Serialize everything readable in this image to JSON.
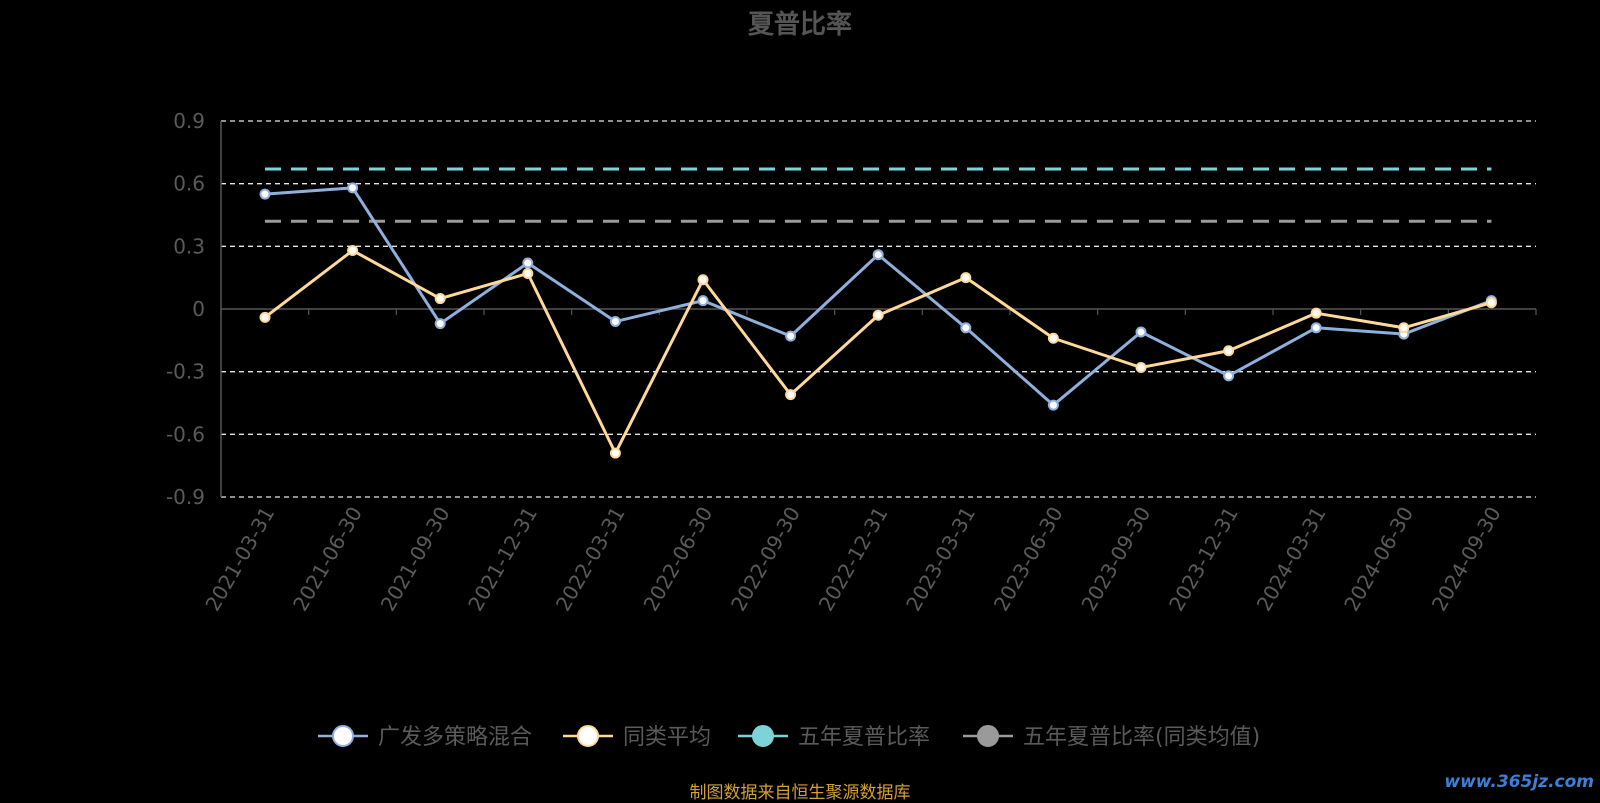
{
  "chart_data": {
    "type": "line",
    "title": "夏普比率",
    "categories": [
      "2021-03-31",
      "2021-06-30",
      "2021-09-30",
      "2021-12-31",
      "2022-03-31",
      "2022-06-30",
      "2022-09-30",
      "2022-12-31",
      "2023-03-31",
      "2023-06-30",
      "2023-09-30",
      "2023-12-31",
      "2024-03-31",
      "2024-06-30",
      "2024-09-30"
    ],
    "y_ticks": [
      "0.9",
      "0.6",
      "0.3",
      "0",
      "-0.3",
      "-0.6",
      "-0.9"
    ],
    "ylim": [
      -0.9,
      0.9
    ],
    "grid": true,
    "legend_position": "bottom",
    "series": [
      {
        "name": "广发多策略混合",
        "color": "#8fb0dc",
        "marker": "circle",
        "values": [
          0.55,
          0.58,
          -0.07,
          0.22,
          -0.06,
          0.04,
          -0.13,
          0.26,
          -0.09,
          -0.46,
          -0.11,
          -0.32,
          -0.09,
          -0.12,
          0.04
        ]
      },
      {
        "name": "同类平均",
        "color": "#ffd999",
        "marker": "circle",
        "values": [
          -0.04,
          0.28,
          0.05,
          0.17,
          -0.69,
          0.14,
          -0.41,
          -0.03,
          0.15,
          -0.14,
          -0.28,
          -0.2,
          -0.02,
          -0.09,
          0.03
        ]
      },
      {
        "name": "五年夏普比率",
        "color": "#7dd3d8",
        "style": "dashed",
        "value": 0.67
      },
      {
        "name": "五年夏普比率(同类均值)",
        "color": "#9a9a9a",
        "style": "dashed",
        "value": 0.42
      }
    ]
  },
  "legend": {
    "items": [
      {
        "label": "广发多策略混合",
        "line_color": "#8fb0dc",
        "dot_color": "#ffffff"
      },
      {
        "label": "同类平均",
        "line_color": "#ffd999",
        "dot_color": "#ffffff"
      },
      {
        "label": "五年夏普比率",
        "line_color": "#7dd3d8",
        "dot_color": "#7dd3d8"
      },
      {
        "label": "五年夏普比率(同类均值)",
        "line_color": "#9a9a9a",
        "dot_color": "#9a9a9a"
      }
    ]
  },
  "footer": {
    "source": "制图数据来自恒生聚源数据库",
    "watermark": "www.365jz.com"
  }
}
